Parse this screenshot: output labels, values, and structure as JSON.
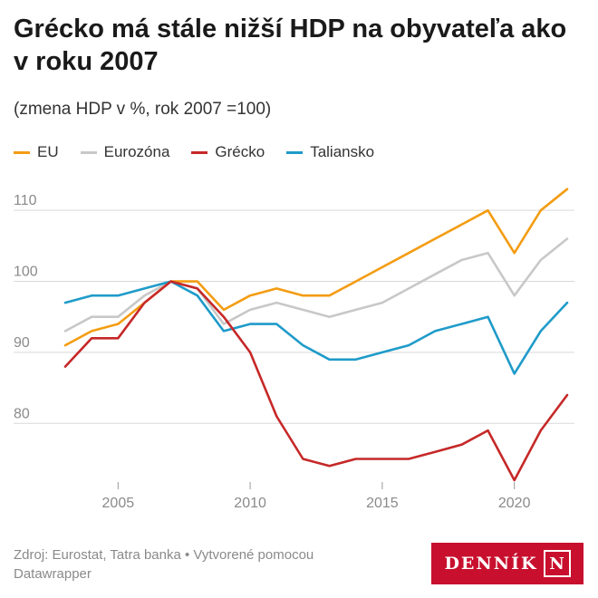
{
  "title": "Grécko má stále nižší HDP na obyvateľa ako v roku 2007",
  "subtitle": "(zmena HDP v %, rok 2007 =100)",
  "footer": {
    "source": "Zdroj: Eurostat, Tatra banka  • Vytvorené pomocou Datawrapper"
  },
  "logo": {
    "text": "DENNÍK",
    "box_letter": "N",
    "color": "#c8102e"
  },
  "chart_data": {
    "type": "line",
    "x": [
      2003,
      2004,
      2005,
      2006,
      2007,
      2008,
      2009,
      2010,
      2011,
      2012,
      2013,
      2014,
      2015,
      2016,
      2017,
      2018,
      2019,
      2020,
      2021,
      2022
    ],
    "x_ticks": [
      2005,
      2010,
      2015,
      2020
    ],
    "y_ticks": [
      80,
      90,
      100,
      110
    ],
    "ylim": [
      72,
      115
    ],
    "xlim": [
      2003,
      2022
    ],
    "grid": true,
    "legend_position": "top-left",
    "series": [
      {
        "name": "EU",
        "color": "#f39c12",
        "values": [
          91,
          93,
          94,
          97,
          100,
          100,
          96,
          98,
          99,
          98,
          98,
          100,
          102,
          104,
          106,
          108,
          110,
          104,
          110,
          113
        ]
      },
      {
        "name": "Eurozóna",
        "color": "#c8c8c8",
        "values": [
          93,
          95,
          95,
          98,
          100,
          99,
          94,
          96,
          97,
          96,
          95,
          96,
          97,
          99,
          101,
          103,
          104,
          98,
          103,
          106
        ]
      },
      {
        "name": "Grécko",
        "color": "#c62828",
        "values": [
          88,
          92,
          92,
          97,
          100,
          99,
          95,
          90,
          81,
          75,
          74,
          75,
          75,
          75,
          76,
          77,
          79,
          72,
          79,
          84
        ]
      },
      {
        "name": "Taliansko",
        "color": "#1f9bc9",
        "values": [
          97,
          98,
          98,
          99,
          100,
          98,
          93,
          94,
          94,
          91,
          89,
          89,
          90,
          91,
          93,
          94,
          95,
          87,
          93,
          97
        ]
      }
    ]
  }
}
